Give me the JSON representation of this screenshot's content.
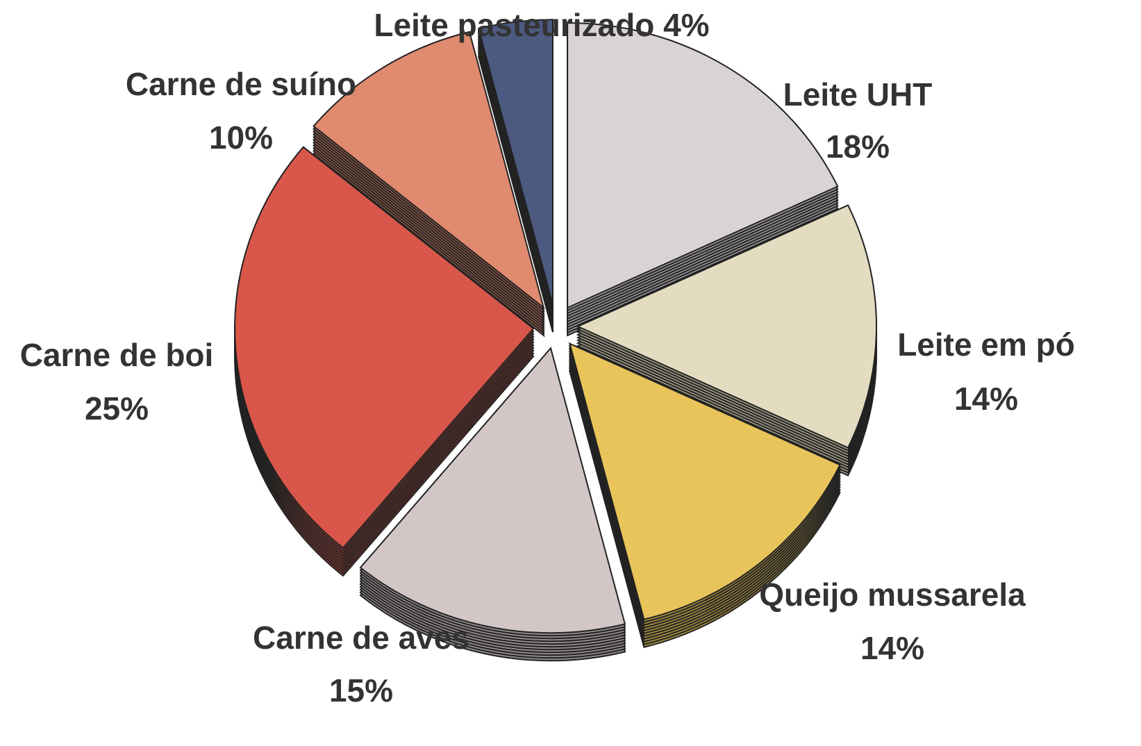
{
  "chart_data": {
    "type": "pie",
    "categories": [
      "Leite UHT",
      "Leite em pó",
      "Queijo mussarela",
      "Carne de aves",
      "Carne de boi",
      "Carne de suíno",
      "Leite pasteurizado"
    ],
    "values": [
      18,
      14,
      14,
      15,
      25,
      10,
      4
    ],
    "value_labels": [
      "18%",
      "14%",
      "14%",
      "15%",
      "25%",
      "10%",
      "4%"
    ],
    "colors": [
      "#d9d3d8",
      "#e3dcc0",
      "#e8c45a",
      "#d3c6c6",
      "#d9574a",
      "#e08a70",
      "#4c5a80"
    ]
  }
}
